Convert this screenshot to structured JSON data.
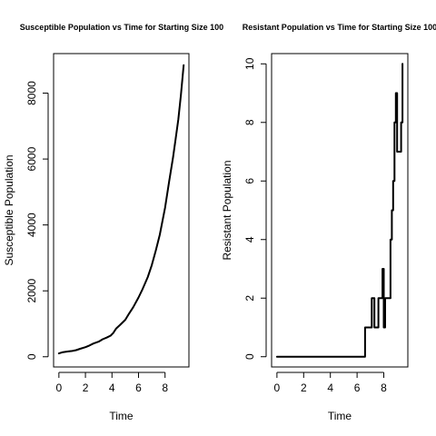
{
  "chart_data": [
    {
      "type": "line",
      "title": "Susceptible Population vs Time for Starting Size 100",
      "xlabel": "Time",
      "ylabel": "Susceptible Population",
      "xlim": [
        -0.4,
        9.8
      ],
      "ylim": [
        -310,
        9200
      ],
      "x_ticks": [
        0,
        2,
        4,
        6,
        8
      ],
      "y_ticks": [
        0,
        2000,
        4000,
        6000,
        8000
      ],
      "grid": false,
      "legend": "none",
      "line_color": "#000000",
      "series": [
        {
          "step": false,
          "x": [
            0,
            0.3,
            0.7,
            1,
            1.3,
            1.6,
            2,
            2.3,
            2.6,
            3,
            3.3,
            3.6,
            3.9,
            4.1,
            4.3,
            4.6,
            5,
            5.3,
            5.6,
            6,
            6.3,
            6.7,
            7,
            7.3,
            7.6,
            8,
            8.3,
            8.6,
            8.8,
            9,
            9.2,
            9.4
          ],
          "y": [
            100,
            140,
            160,
            175,
            200,
            240,
            290,
            340,
            400,
            460,
            530,
            580,
            640,
            720,
            850,
            960,
            1120,
            1320,
            1500,
            1800,
            2050,
            2420,
            2780,
            3220,
            3700,
            4520,
            5300,
            6050,
            6620,
            7200,
            7950,
            8850
          ]
        }
      ]
    },
    {
      "type": "line",
      "title": "Resistant Population vs Time for Starting Size 100",
      "xlabel": "Time",
      "ylabel": "Resistant Population",
      "xlim": [
        -0.4,
        9.8
      ],
      "ylim": [
        -0.35,
        10.35
      ],
      "x_ticks": [
        0,
        2,
        4,
        6,
        8
      ],
      "y_ticks": [
        0,
        2,
        4,
        6,
        8,
        10
      ],
      "grid": false,
      "legend": "none",
      "line_color": "#000000",
      "series": [
        {
          "step": true,
          "x": [
            0,
            6.6,
            7.1,
            7.3,
            7.6,
            7.9,
            8.0,
            8.1,
            8.5,
            8.6,
            8.7,
            8.8,
            8.9,
            9.0,
            9.3,
            9.4
          ],
          "y": [
            0,
            1,
            2,
            1,
            2,
            3,
            1,
            2,
            4,
            5,
            6,
            8,
            9,
            7,
            8,
            10
          ]
        }
      ]
    }
  ]
}
